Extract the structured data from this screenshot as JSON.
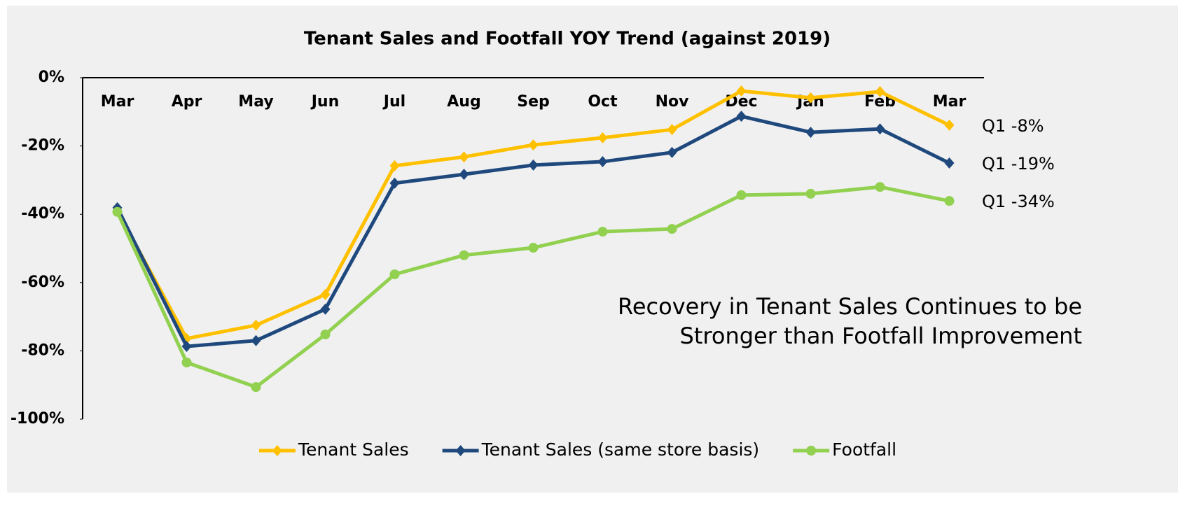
{
  "chart_data": {
    "type": "line",
    "title": "Tenant  Sales and Footfall YOY Trend (against 2019)",
    "categories": [
      "Mar",
      "Apr",
      "May",
      "Jun",
      "Jul",
      "Aug",
      "Sep",
      "Oct",
      "Nov",
      "Dec",
      "Jan",
      "Feb",
      "Mar"
    ],
    "series": [
      {
        "name": "Tenant Sales",
        "color": "#ffc000",
        "marker": "diamond",
        "values": [
          -39,
          -76.4,
          -72.5,
          -63.5,
          -25.8,
          -23.2,
          -19.7,
          -17.6,
          -15.2,
          -3.9,
          -5.9,
          -4.1,
          -13.9
        ],
        "end_label": "Q1 -8%",
        "end_label_color": "#f5a83a"
      },
      {
        "name": "Tenant Sales (same store basis)",
        "color": "#1f497d",
        "marker": "diamond",
        "values": [
          -38.1,
          -78.7,
          -77,
          -67.8,
          -30.9,
          -28.3,
          -25.6,
          -24.6,
          -21.9,
          -11.3,
          -16,
          -15,
          -25
        ],
        "end_label": "Q1 -19%",
        "end_label_color": "#2d4f86"
      },
      {
        "name": "Footfall",
        "color": "#92d050",
        "marker": "circle",
        "values": [
          -39.3,
          -83.4,
          -90.6,
          -75.2,
          -57.6,
          -52,
          -49.8,
          -45.1,
          -44.3,
          -34.4,
          -34,
          -32,
          -36.1
        ],
        "end_label": "Q1 -34%",
        "end_label_color": "#00b050"
      }
    ],
    "ylim": [
      -100,
      0
    ],
    "yticks": [
      {
        "value": 0,
        "label": "0%"
      },
      {
        "value": -20,
        "label": "-20%"
      },
      {
        "value": -40,
        "label": "-40%"
      },
      {
        "value": -60,
        "label": "-60%"
      },
      {
        "value": -80,
        "label": "-80%"
      },
      {
        "value": -100,
        "label": "-100%"
      }
    ],
    "callout": [
      "Recovery in Tenant Sales Continues to be",
      "Stronger than Footfall Improvement"
    ],
    "callout_color": "#1f5f8b",
    "legend": "bottom"
  }
}
